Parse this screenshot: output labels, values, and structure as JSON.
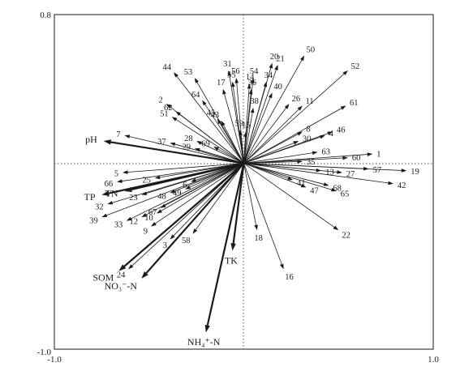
{
  "chart_data": {
    "type": "scatter",
    "subtype": "biplot",
    "title": "",
    "xlabel": "",
    "ylabel": "",
    "xlim": [
      -1.0,
      1.0
    ],
    "ylim": [
      -1.0,
      0.8
    ],
    "x_tick_labels": [
      "-1.0",
      "1.0"
    ],
    "y_tick_labels": [
      "0.8",
      "-1.0"
    ],
    "grid": false,
    "reference_lines": [
      {
        "axis": "x",
        "value": 0,
        "style": "dotted"
      },
      {
        "axis": "y",
        "value": 0,
        "style": "dotted"
      }
    ],
    "environmental_vectors": [
      {
        "label": "pH",
        "x": -0.74,
        "y": 0.12
      },
      {
        "label": "TP",
        "x": -0.75,
        "y": -0.17
      },
      {
        "label": "TN",
        "x": -0.63,
        "y": -0.15
      },
      {
        "label": "SOM",
        "x": -0.66,
        "y": -0.58
      },
      {
        "label": "NO₃⁻-N",
        "x": -0.54,
        "y": -0.62
      },
      {
        "label": "TK",
        "x": -0.06,
        "y": -0.47
      },
      {
        "label": "NH₄⁺-N",
        "x": -0.2,
        "y": -0.91
      }
    ],
    "sample_vectors": [
      {
        "label": "1",
        "x": 0.68,
        "y": 0.05
      },
      {
        "label": "2",
        "x": -0.41,
        "y": 0.32
      },
      {
        "label": "3",
        "x": -0.39,
        "y": -0.41
      },
      {
        "label": "4",
        "x": 0.43,
        "y": 0.15
      },
      {
        "label": "5",
        "x": -0.64,
        "y": -0.05
      },
      {
        "label": "6",
        "x": -0.28,
        "y": -0.1
      },
      {
        "label": "7",
        "x": -0.63,
        "y": 0.15
      },
      {
        "label": "8",
        "x": 0.31,
        "y": 0.17
      },
      {
        "label": "9",
        "x": -0.49,
        "y": -0.34
      },
      {
        "label": "10",
        "x": -0.46,
        "y": -0.27
      },
      {
        "label": "11",
        "x": 0.31,
        "y": 0.31
      },
      {
        "label": "12",
        "x": -0.54,
        "y": -0.29
      },
      {
        "label": "13",
        "x": 0.41,
        "y": -0.04
      },
      {
        "label": "14",
        "x": 0.03,
        "y": 0.43
      },
      {
        "label": "15",
        "x": 0.01,
        "y": 0.17
      },
      {
        "label": "16",
        "x": 0.21,
        "y": -0.57
      },
      {
        "label": "17",
        "x": -0.11,
        "y": 0.4
      },
      {
        "label": "18",
        "x": 0.07,
        "y": -0.36
      },
      {
        "label": "19",
        "x": 0.86,
        "y": -0.04
      },
      {
        "label": "20",
        "x": 0.15,
        "y": 0.54
      },
      {
        "label": "21",
        "x": 0.18,
        "y": 0.53
      },
      {
        "label": "22",
        "x": 0.5,
        "y": -0.36
      },
      {
        "label": "23",
        "x": -0.54,
        "y": -0.17
      },
      {
        "label": "24",
        "x": -0.61,
        "y": -0.57
      },
      {
        "label": "25",
        "x": -0.47,
        "y": -0.08
      },
      {
        "label": "26",
        "x": 0.24,
        "y": 0.32
      },
      {
        "label": "27",
        "x": 0.52,
        "y": -0.05
      },
      {
        "label": "28",
        "x": -0.25,
        "y": 0.12
      },
      {
        "label": "29",
        "x": -0.26,
        "y": 0.08
      },
      {
        "label": "30",
        "x": 0.29,
        "y": 0.12
      },
      {
        "label": "31",
        "x": -0.08,
        "y": 0.5
      },
      {
        "label": "32",
        "x": -0.72,
        "y": -0.22
      },
      {
        "label": "33",
        "x": -0.62,
        "y": -0.31
      },
      {
        "label": "34",
        "x": 0.12,
        "y": 0.44
      },
      {
        "label": "35",
        "x": 0.31,
        "y": 0.01
      },
      {
        "label": "36",
        "x": 0.04,
        "y": 0.4
      },
      {
        "label": "37",
        "x": -0.39,
        "y": 0.11
      },
      {
        "label": "38",
        "x": 0.05,
        "y": 0.3
      },
      {
        "label": "39",
        "x": -0.75,
        "y": -0.29
      },
      {
        "label": "40",
        "x": 0.15,
        "y": 0.38
      },
      {
        "label": "41",
        "x": 0.26,
        "y": -0.09
      },
      {
        "label": "42",
        "x": 0.79,
        "y": -0.11
      },
      {
        "label": "43",
        "x": -0.12,
        "y": 0.23
      },
      {
        "label": "44",
        "x": -0.37,
        "y": 0.49
      },
      {
        "label": "45",
        "x": -0.14,
        "y": 0.24
      },
      {
        "label": "46",
        "x": 0.47,
        "y": 0.17
      },
      {
        "label": "47",
        "x": 0.33,
        "y": -0.13
      },
      {
        "label": "48",
        "x": -0.39,
        "y": -0.16
      },
      {
        "label": "49",
        "x": -0.31,
        "y": -0.14
      },
      {
        "label": "50",
        "x": 0.32,
        "y": 0.58
      },
      {
        "label": "51",
        "x": -0.38,
        "y": 0.25
      },
      {
        "label": "52",
        "x": 0.55,
        "y": 0.5
      },
      {
        "label": "53",
        "x": -0.26,
        "y": 0.46
      },
      {
        "label": "54",
        "x": 0.05,
        "y": 0.46
      },
      {
        "label": "55",
        "x": -0.06,
        "y": 0.44
      },
      {
        "label": "56",
        "x": -0.04,
        "y": 0.46
      },
      {
        "label": "57",
        "x": 0.66,
        "y": -0.03
      },
      {
        "label": "58",
        "x": -0.27,
        "y": -0.38
      },
      {
        "label": "59",
        "x": -0.02,
        "y": 0.18
      },
      {
        "label": "60",
        "x": 0.55,
        "y": 0.03
      },
      {
        "label": "61",
        "x": 0.54,
        "y": 0.31
      },
      {
        "label": "62",
        "x": -0.36,
        "y": 0.28
      },
      {
        "label": "63",
        "x": 0.39,
        "y": 0.06
      },
      {
        "label": "64",
        "x": -0.22,
        "y": 0.34
      },
      {
        "label": "65",
        "x": 0.49,
        "y": -0.15
      },
      {
        "label": "66",
        "x": -0.67,
        "y": -0.1
      },
      {
        "label": "67",
        "x": -0.44,
        "y": -0.24
      },
      {
        "label": "68",
        "x": 0.45,
        "y": -0.12
      },
      {
        "label": "69",
        "x": -0.16,
        "y": 0.09
      }
    ],
    "colors": {
      "vectors": "#1a1a1a",
      "reference_lines": "#555555"
    }
  }
}
